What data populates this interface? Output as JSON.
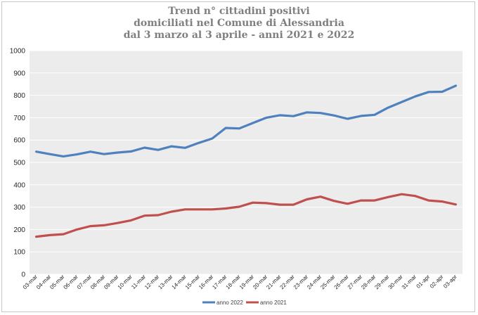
{
  "chart_data": {
    "type": "line",
    "title_lines": [
      "Trend n° cittadini positivi",
      "domiciliati nel Comune di Alessandria",
      "dal 3 marzo al 3 aprile - anni 2021 e 2022"
    ],
    "categories": [
      "03-mar",
      "04-mar",
      "05-mar",
      "06-mar",
      "07-mar",
      "08-mar",
      "09-mar",
      "10-mar",
      "11-mar",
      "12-mar",
      "13-mar",
      "14-mar",
      "15-mar",
      "16-mar",
      "17-mar",
      "18-mar",
      "19-mar",
      "20-mar",
      "21-mar",
      "22-mar",
      "23-mar",
      "24-mar",
      "25-mar",
      "26-mar",
      "27-mar",
      "28-mar",
      "29-mar",
      "30-mar",
      "31-mar",
      "01-apr",
      "02-apr",
      "03-apr"
    ],
    "series": [
      {
        "name": "anno 2022",
        "color": "#4f81bd",
        "values": [
          548,
          537,
          527,
          536,
          548,
          537,
          544,
          549,
          566,
          556,
          572,
          565,
          587,
          607,
          654,
          652,
          676,
          700,
          711,
          707,
          724,
          721,
          710,
          695,
          708,
          713,
          745,
          770,
          795,
          815,
          816,
          843
        ]
      },
      {
        "name": "anno 2021",
        "color": "#c0504d",
        "values": [
          168,
          175,
          179,
          200,
          215,
          219,
          229,
          241,
          262,
          264,
          280,
          290,
          290,
          290,
          294,
          302,
          320,
          318,
          311,
          311,
          335,
          347,
          328,
          315,
          330,
          330,
          345,
          358,
          350,
          330,
          325,
          312
        ]
      }
    ],
    "ylim": [
      0,
      1000
    ],
    "yticks": [
      0,
      100,
      200,
      300,
      400,
      500,
      600,
      700,
      800,
      900,
      1000
    ],
    "grid": true,
    "legend_position": "bottom"
  }
}
